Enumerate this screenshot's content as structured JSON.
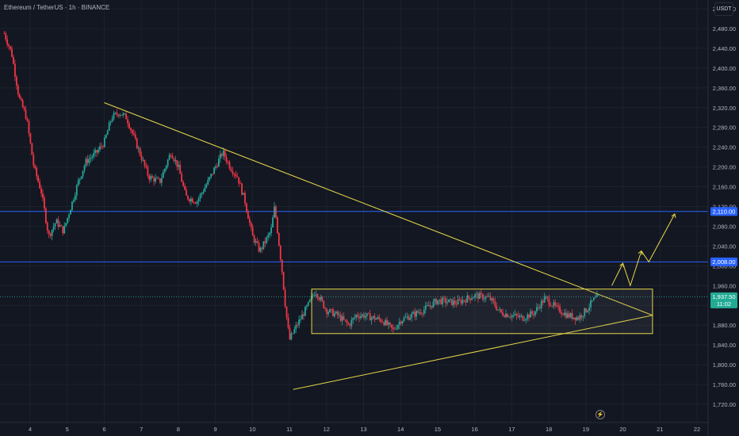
{
  "header": {
    "title": "Ethereum / TetherUS · 1h · BINANCE",
    "currency_button": "USDT"
  },
  "colors": {
    "background": "#131722",
    "up": "#26a69a",
    "down": "#f23645",
    "trendline": "#e8d84a",
    "level": "#2962ff",
    "price_badge": "#22ab94"
  },
  "price_axis": {
    "ticks": [
      "2,520.00",
      "2,480.00",
      "2,440.00",
      "2,400.00",
      "2,360.00",
      "2,320.00",
      "2,280.00",
      "2,240.00",
      "2,200.00",
      "2,160.00",
      "2,120.00",
      "2,080.00",
      "2,040.00",
      "2,000.00",
      "1,960.00",
      "1,920.00",
      "1,880.00",
      "1,840.00",
      "1,800.00",
      "1,760.00",
      "1,720.00"
    ]
  },
  "time_axis": {
    "ticks": [
      "4",
      "5",
      "6",
      "7",
      "8",
      "9",
      "10",
      "11",
      "12",
      "13",
      "14",
      "15",
      "16",
      "17",
      "18",
      "19",
      "20",
      "21",
      "22"
    ]
  },
  "badges": {
    "level_upper": "2,110.00",
    "level_lower": "2,008.00",
    "current_price": "1,937.50",
    "countdown": "11:02"
  },
  "chart_data": {
    "type": "candlestick",
    "title": "Ethereum / TetherUS · 1h · BINANCE",
    "x_unit": "day",
    "ylim": [
      1700,
      2540
    ],
    "xlim": [
      3.3,
      22.5
    ],
    "horizontal_levels": [
      2110,
      2008
    ],
    "current_price": 1937.5,
    "close_path_approx": [
      [
        3.3,
        2470
      ],
      [
        3.5,
        2430
      ],
      [
        3.7,
        2340
      ],
      [
        3.9,
        2300
      ],
      [
        4.1,
        2200
      ],
      [
        4.3,
        2150
      ],
      [
        4.5,
        2060
      ],
      [
        4.7,
        2090
      ],
      [
        4.9,
        2070
      ],
      [
        5.1,
        2120
      ],
      [
        5.3,
        2170
      ],
      [
        5.5,
        2210
      ],
      [
        5.8,
        2230
      ],
      [
        6.0,
        2250
      ],
      [
        6.2,
        2300
      ],
      [
        6.4,
        2310
      ],
      [
        6.6,
        2300
      ],
      [
        6.8,
        2260
      ],
      [
        7.0,
        2220
      ],
      [
        7.2,
        2180
      ],
      [
        7.5,
        2170
      ],
      [
        7.8,
        2230
      ],
      [
        8.0,
        2200
      ],
      [
        8.2,
        2140
      ],
      [
        8.5,
        2130
      ],
      [
        8.8,
        2170
      ],
      [
        9.0,
        2200
      ],
      [
        9.2,
        2230
      ],
      [
        9.4,
        2200
      ],
      [
        9.6,
        2180
      ],
      [
        9.8,
        2130
      ],
      [
        10.0,
        2060
      ],
      [
        10.2,
        2030
      ],
      [
        10.5,
        2070
      ],
      [
        10.6,
        2120
      ],
      [
        10.8,
        1990
      ],
      [
        10.9,
        1910
      ],
      [
        11.0,
        1850
      ],
      [
        11.2,
        1880
      ],
      [
        11.5,
        1920
      ],
      [
        11.7,
        1950
      ],
      [
        12.0,
        1910
      ],
      [
        12.3,
        1900
      ],
      [
        12.6,
        1880
      ],
      [
        12.8,
        1900
      ],
      [
        13.0,
        1900
      ],
      [
        13.5,
        1890
      ],
      [
        13.8,
        1870
      ],
      [
        14.0,
        1890
      ],
      [
        14.3,
        1900
      ],
      [
        14.6,
        1910
      ],
      [
        15.0,
        1930
      ],
      [
        15.5,
        1925
      ],
      [
        16.0,
        1940
      ],
      [
        16.4,
        1935
      ],
      [
        16.7,
        1905
      ],
      [
        17.0,
        1900
      ],
      [
        17.3,
        1895
      ],
      [
        17.6,
        1905
      ],
      [
        17.9,
        1935
      ],
      [
        18.2,
        1915
      ],
      [
        18.5,
        1900
      ],
      [
        18.8,
        1895
      ],
      [
        19.0,
        1910
      ],
      [
        19.2,
        1930
      ],
      [
        19.35,
        1937.5
      ]
    ],
    "drawings": [
      {
        "kind": "trendline",
        "points": [
          [
            6.0,
            2330
          ],
          [
            20.8,
            1900
          ]
        ]
      },
      {
        "kind": "trendline",
        "points": [
          [
            11.1,
            1750
          ],
          [
            20.8,
            1900
          ]
        ]
      },
      {
        "kind": "rectangle",
        "x": [
          11.6,
          20.8
        ],
        "y": [
          1863,
          1953
        ]
      },
      {
        "kind": "projection_path",
        "points": [
          [
            19.7,
            1960
          ],
          [
            20.0,
            2005
          ],
          [
            20.2,
            1960
          ],
          [
            20.5,
            2030
          ],
          [
            20.7,
            2008
          ],
          [
            21.4,
            2105
          ]
        ]
      }
    ]
  }
}
